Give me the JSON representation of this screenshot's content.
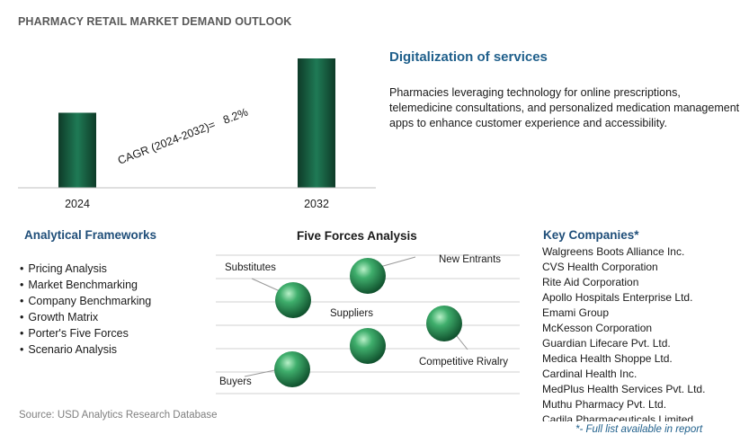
{
  "header": {
    "title": "PHARMACY RETAIL MARKET DEMAND OUTLOOK"
  },
  "chart_data": {
    "type": "bar",
    "categories": [
      "2024",
      "2032"
    ],
    "values": [
      0.58,
      1.0
    ],
    "value_note": "relative bar heights (2032 = 1), no values printed",
    "annotation": "CAGR (2024-2032)=   8.2%",
    "bar_color": "#1f7a55",
    "bar_gradient_dark": "#0e3b28",
    "grid": false,
    "legend": "none"
  },
  "feature": {
    "title": "Digitalization of services",
    "description": "Pharmacies leveraging technology for online prescriptions, telemedicine consultations, and personalized medication management apps to enhance customer experience and accessibility."
  },
  "analytical_frameworks": {
    "title": "Analytical Frameworks",
    "items": [
      "Pricing Analysis",
      "Market Benchmarking",
      "Company Benchmarking",
      "Growth Matrix",
      "Porter's Five Forces",
      "Scenario Analysis"
    ]
  },
  "five_forces": {
    "title": "Five Forces Analysis",
    "labels": {
      "substitutes": "Substitutes",
      "new_entrants": "New Entrants",
      "suppliers": "Suppliers",
      "competitive_rivalry": "Competitive Rivalry",
      "buyers": "Buyers"
    },
    "sphere_color": "#2e9a5e"
  },
  "key_companies": {
    "title": "Key Companies*",
    "items": [
      "Walgreens Boots Alliance Inc.",
      "CVS Health Corporation",
      "Rite Aid Corporation",
      "Apollo Hospitals Enterprise Ltd.",
      "Emami Group",
      "McKesson Corporation",
      "Guardian Lifecare Pvt. Ltd.",
      "Medica Health Shoppe Ltd.",
      "Cardinal Health Inc.",
      "MedPlus Health Services Pvt. Ltd.",
      "Muthu Pharmacy Pvt. Ltd.",
      "Cadila Pharmaceuticals Limited"
    ],
    "note": "*- Full list available in report"
  },
  "footer": {
    "source": "Source: USD Analytics Research Database"
  }
}
